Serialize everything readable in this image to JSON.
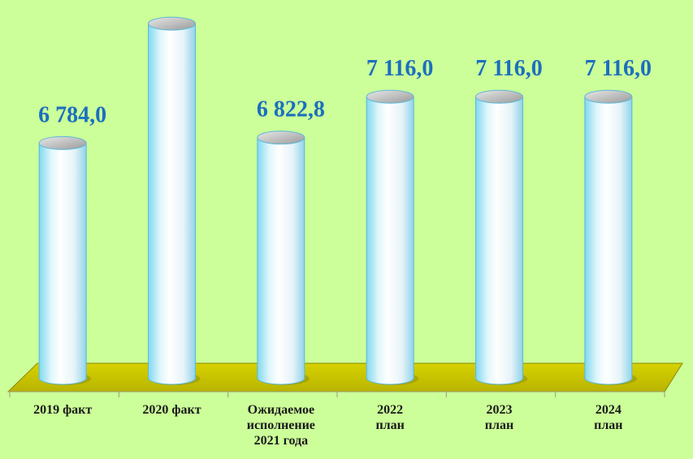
{
  "chart_data": {
    "type": "bar",
    "categories": [
      "2019 факт",
      "2020 факт",
      "Ожидаемое\nисполнение\n2021 года",
      "2022\nплан",
      "2023\nплан",
      "2024\nплан"
    ],
    "values": [
      6784.0,
      7640.0,
      6822.8,
      7116.0,
      7116.0,
      7116.0
    ],
    "data_labels": [
      "6 784,0",
      "",
      "6 822,8",
      "7 116,0",
      "7 116,0",
      "7 116,0"
    ],
    "title": "",
    "xlabel": "",
    "ylabel": "",
    "grid": false,
    "legend": "none"
  },
  "colors": {
    "background": "#ccff99",
    "floor": "#c8c400",
    "floor_edge": "#8a8600",
    "label_color": "#1b6fbf"
  }
}
